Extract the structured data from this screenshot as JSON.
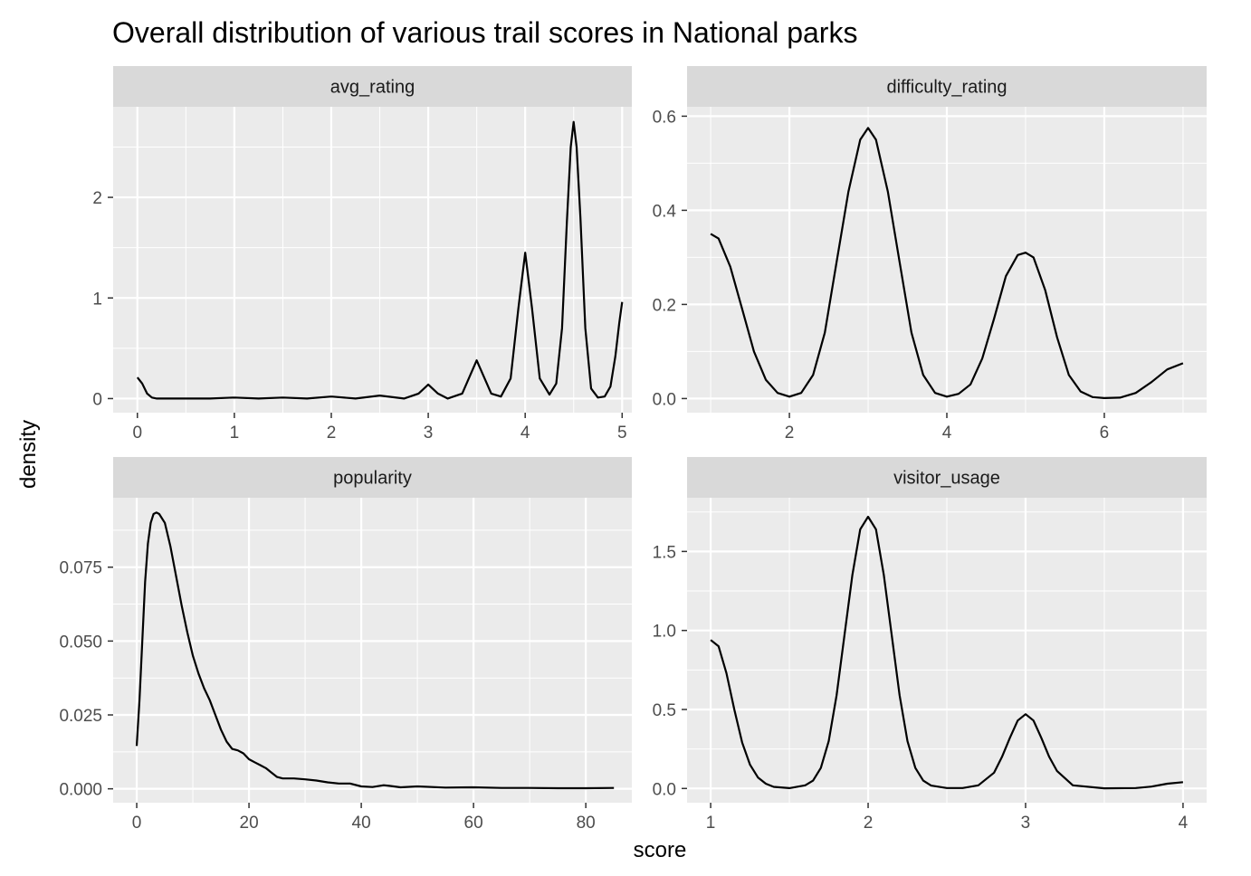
{
  "chart_data": {
    "type": "line",
    "title": "Overall distribution of various trail scores in National parks",
    "xlabel": "score",
    "ylabel": "density",
    "grid": true,
    "facets": [
      {
        "name": "avg_rating",
        "xlim": [
          -0.25,
          5.1
        ],
        "ylim": [
          -0.14,
          2.9
        ],
        "xticks": [
          0,
          1,
          2,
          3,
          4,
          5
        ],
        "xtick_labels": [
          "0",
          "1",
          "2",
          "3",
          "4",
          "5"
        ],
        "yticks": [
          0,
          1,
          2
        ],
        "ytick_labels": [
          "0",
          "1",
          "2"
        ],
        "x": [
          0.0,
          0.05,
          0.1,
          0.15,
          0.2,
          0.3,
          0.5,
          0.75,
          1.0,
          1.25,
          1.5,
          1.75,
          2.0,
          2.25,
          2.5,
          2.75,
          2.9,
          3.0,
          3.1,
          3.2,
          3.35,
          3.5,
          3.65,
          3.75,
          3.85,
          3.93,
          4.0,
          4.07,
          4.15,
          4.25,
          4.32,
          4.38,
          4.43,
          4.47,
          4.5,
          4.53,
          4.57,
          4.62,
          4.68,
          4.75,
          4.82,
          4.88,
          4.93,
          4.97,
          5.0
        ],
        "y": [
          0.21,
          0.15,
          0.05,
          0.01,
          0.0,
          0.0,
          0.0,
          0.0,
          0.01,
          0.0,
          0.01,
          0.0,
          0.02,
          0.0,
          0.03,
          0.0,
          0.05,
          0.14,
          0.05,
          0.0,
          0.05,
          0.38,
          0.05,
          0.02,
          0.2,
          0.9,
          1.45,
          0.9,
          0.2,
          0.04,
          0.15,
          0.7,
          1.75,
          2.5,
          2.75,
          2.5,
          1.8,
          0.7,
          0.1,
          0.01,
          0.02,
          0.12,
          0.42,
          0.75,
          0.96
        ]
      },
      {
        "name": "difficulty_rating",
        "xlim": [
          0.7,
          7.3
        ],
        "ylim": [
          -0.03,
          0.62
        ],
        "xticks": [
          2,
          4,
          6
        ],
        "xtick_labels": [
          "2",
          "4",
          "6"
        ],
        "yticks": [
          0.0,
          0.2,
          0.4,
          0.6
        ],
        "ytick_labels": [
          "0.0",
          "0.2",
          "0.4",
          "0.6"
        ],
        "x": [
          1.0,
          1.1,
          1.25,
          1.4,
          1.55,
          1.7,
          1.85,
          2.0,
          2.15,
          2.3,
          2.45,
          2.6,
          2.75,
          2.9,
          3.0,
          3.1,
          3.25,
          3.4,
          3.55,
          3.7,
          3.85,
          4.0,
          4.15,
          4.3,
          4.45,
          4.6,
          4.75,
          4.9,
          5.0,
          5.1,
          5.25,
          5.4,
          5.55,
          5.7,
          5.85,
          6.0,
          6.2,
          6.4,
          6.6,
          6.8,
          7.0
        ],
        "y": [
          0.35,
          0.34,
          0.28,
          0.19,
          0.1,
          0.04,
          0.012,
          0.004,
          0.012,
          0.05,
          0.14,
          0.29,
          0.44,
          0.55,
          0.575,
          0.55,
          0.44,
          0.29,
          0.14,
          0.05,
          0.012,
          0.004,
          0.01,
          0.03,
          0.085,
          0.17,
          0.26,
          0.305,
          0.31,
          0.3,
          0.23,
          0.13,
          0.05,
          0.015,
          0.003,
          0.001,
          0.002,
          0.012,
          0.035,
          0.062,
          0.075
        ]
      },
      {
        "name": "popularity",
        "xlim": [
          -4.2,
          88.2
        ],
        "ylim": [
          -0.0047,
          0.0985
        ],
        "xticks": [
          0,
          20,
          40,
          60,
          80
        ],
        "xtick_labels": [
          "0",
          "20",
          "40",
          "60",
          "80"
        ],
        "yticks": [
          0.0,
          0.025,
          0.05,
          0.075
        ],
        "ytick_labels": [
          "0.000",
          "0.025",
          "0.050",
          "0.075"
        ],
        "x": [
          0,
          0.5,
          1,
          1.5,
          2,
          2.5,
          3,
          3.5,
          4,
          5,
          6,
          7,
          8,
          9,
          10,
          11,
          12,
          13,
          14,
          15,
          16,
          17,
          18,
          19,
          20,
          21,
          22,
          23,
          24,
          25,
          26,
          28,
          30,
          32,
          34,
          36,
          38,
          40,
          42,
          44,
          45,
          47,
          50,
          55,
          60,
          65,
          70,
          75,
          80,
          85
        ],
        "y": [
          0.0145,
          0.03,
          0.05,
          0.07,
          0.083,
          0.09,
          0.093,
          0.0935,
          0.093,
          0.09,
          0.082,
          0.072,
          0.062,
          0.053,
          0.045,
          0.039,
          0.034,
          0.03,
          0.025,
          0.02,
          0.016,
          0.0135,
          0.013,
          0.012,
          0.01,
          0.009,
          0.008,
          0.007,
          0.0055,
          0.004,
          0.0035,
          0.0035,
          0.0032,
          0.0028,
          0.0022,
          0.0018,
          0.0018,
          0.0008,
          0.0006,
          0.0012,
          0.001,
          0.0005,
          0.0008,
          0.0004,
          0.0005,
          0.0003,
          0.0003,
          0.0002,
          0.0002,
          0.0003
        ]
      },
      {
        "name": "visitor_usage",
        "xlim": [
          0.85,
          4.15
        ],
        "ylim": [
          -0.09,
          1.84
        ],
        "xticks": [
          1,
          2,
          3,
          4
        ],
        "xtick_labels": [
          "1",
          "2",
          "3",
          "4"
        ],
        "yticks": [
          0.0,
          0.5,
          1.0,
          1.5
        ],
        "ytick_labels": [
          "0.0",
          "0.5",
          "1.0",
          "1.5"
        ],
        "x": [
          1.0,
          1.05,
          1.1,
          1.15,
          1.2,
          1.25,
          1.3,
          1.35,
          1.4,
          1.5,
          1.6,
          1.65,
          1.7,
          1.75,
          1.8,
          1.85,
          1.9,
          1.95,
          2.0,
          2.05,
          2.1,
          2.15,
          2.2,
          2.25,
          2.3,
          2.35,
          2.4,
          2.5,
          2.6,
          2.7,
          2.8,
          2.85,
          2.9,
          2.95,
          3.0,
          3.05,
          3.1,
          3.15,
          3.2,
          3.3,
          3.5,
          3.7,
          3.8,
          3.9,
          4.0
        ],
        "y": [
          0.94,
          0.9,
          0.73,
          0.5,
          0.29,
          0.15,
          0.07,
          0.03,
          0.01,
          0.002,
          0.02,
          0.05,
          0.13,
          0.3,
          0.59,
          0.97,
          1.35,
          1.64,
          1.72,
          1.64,
          1.35,
          0.97,
          0.59,
          0.3,
          0.13,
          0.05,
          0.018,
          0.003,
          0.003,
          0.02,
          0.1,
          0.2,
          0.32,
          0.43,
          0.47,
          0.43,
          0.32,
          0.2,
          0.11,
          0.02,
          0.001,
          0.003,
          0.012,
          0.03,
          0.04
        ]
      }
    ]
  }
}
